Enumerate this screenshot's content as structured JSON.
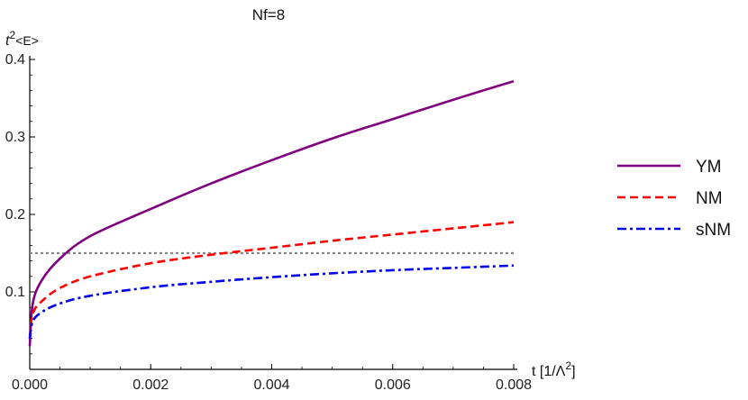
{
  "chart_data": {
    "type": "line",
    "title": "Nf=8",
    "xlabel_main": "t [1/Λ",
    "xlabel_sup": "2",
    "xlabel_end": "]",
    "ylabel_main": "t",
    "ylabel_sup": "2",
    "ylabel_rest": "<E>",
    "xlim": [
      0.0,
      0.008
    ],
    "ylim": [
      0.0,
      0.4
    ],
    "x_ticks": [
      "0.000",
      "0.002",
      "0.004",
      "0.006",
      "0.008"
    ],
    "y_ticks": [
      "0.1",
      "0.2",
      "0.3",
      "0.4"
    ],
    "x_tick_values": [
      0.0,
      0.002,
      0.004,
      0.006,
      0.008
    ],
    "y_tick_values": [
      0.1,
      0.2,
      0.3,
      0.4
    ],
    "reference_line": {
      "y": 0.15,
      "color": "#888888",
      "style": "dotted"
    },
    "legend_position": "right",
    "series": [
      {
        "name": "YM",
        "color": "#800080",
        "style": "solid",
        "x": [
          0.0,
          5e-05,
          0.0002,
          0.0005,
          0.001,
          0.002,
          0.003,
          0.004,
          0.005,
          0.006,
          0.007,
          0.008
        ],
        "y": [
          0.03,
          0.085,
          0.115,
          0.143,
          0.172,
          0.207,
          0.24,
          0.27,
          0.298,
          0.323,
          0.348,
          0.372
        ]
      },
      {
        "name": "NM",
        "color": "#ff0000",
        "style": "dashed",
        "x": [
          0.0,
          5e-05,
          0.0002,
          0.0005,
          0.001,
          0.002,
          0.003,
          0.004,
          0.005,
          0.006,
          0.007,
          0.008
        ],
        "y": [
          0.04,
          0.072,
          0.088,
          0.105,
          0.12,
          0.137,
          0.148,
          0.157,
          0.166,
          0.174,
          0.182,
          0.19
        ]
      },
      {
        "name": "sNM",
        "color": "#0000ee",
        "style": "dashdot",
        "x": [
          0.0,
          5e-05,
          0.0002,
          0.0005,
          0.001,
          0.002,
          0.003,
          0.004,
          0.005,
          0.006,
          0.007,
          0.008
        ],
        "y": [
          0.04,
          0.062,
          0.074,
          0.085,
          0.095,
          0.106,
          0.113,
          0.119,
          0.124,
          0.128,
          0.131,
          0.134
        ]
      }
    ]
  }
}
